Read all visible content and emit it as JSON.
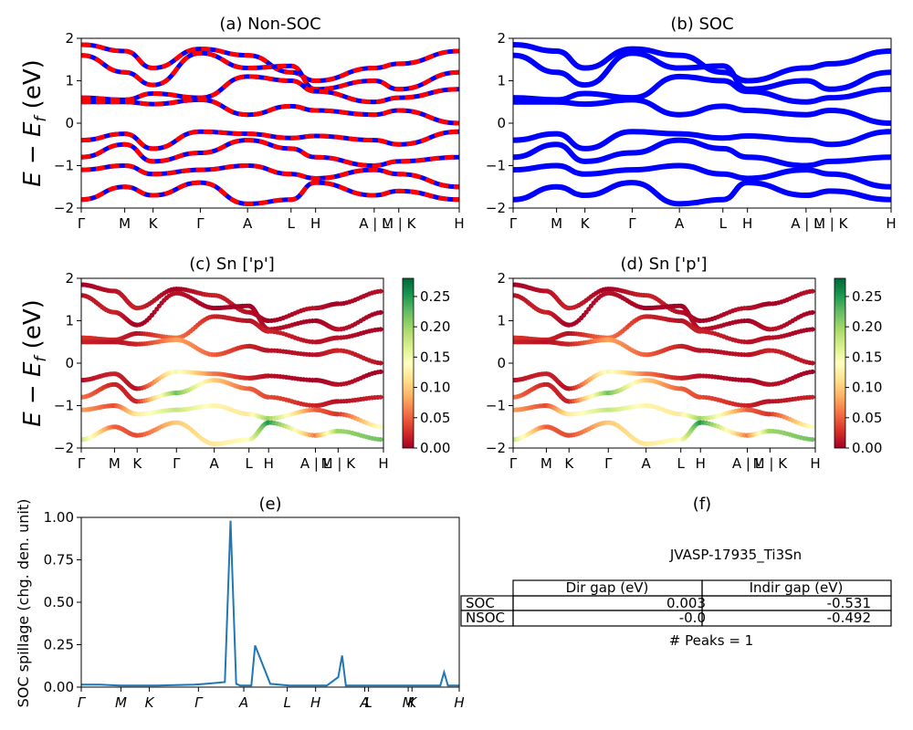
{
  "chart_data": [
    {
      "id": "a",
      "type": "line",
      "title": "(a) Non-SOC",
      "ylabel": "$E - E_f$ (eV)",
      "ylim": [
        -2,
        2
      ],
      "yticks": [
        "2",
        "1",
        "0",
        "−1",
        "−2"
      ],
      "kpath": [
        "Γ",
        "M",
        "K",
        "Γ",
        "A",
        "L",
        "H",
        "A | L",
        "M | K",
        "H"
      ],
      "series": [
        {
          "values": [
            1.85,
            1.7,
            1.3,
            1.75,
            1.6,
            1.2,
            1.0,
            1.3,
            1.4,
            1.7
          ]
        },
        {
          "values": [
            1.6,
            1.2,
            0.9,
            1.65,
            1.3,
            1.35,
            0.8,
            1.0,
            0.8,
            1.2
          ]
        },
        {
          "values": [
            0.6,
            0.55,
            0.7,
            0.6,
            1.1,
            1.0,
            0.75,
            0.5,
            0.6,
            0.8
          ]
        },
        {
          "values": [
            0.5,
            0.5,
            0.45,
            0.55,
            0.2,
            0.4,
            0.3,
            0.2,
            0.3,
            0.0
          ]
        },
        {
          "values": [
            -0.4,
            -0.25,
            -0.6,
            -0.2,
            -0.25,
            -0.35,
            -0.3,
            -0.4,
            -0.5,
            -0.2
          ]
        },
        {
          "values": [
            -0.8,
            -0.5,
            -0.9,
            -0.7,
            -0.4,
            -0.6,
            -0.8,
            -1.0,
            -0.9,
            -0.8
          ]
        },
        {
          "values": [
            -1.1,
            -1.0,
            -1.2,
            -1.1,
            -1.0,
            -1.2,
            -1.3,
            -1.1,
            -1.2,
            -1.5
          ]
        },
        {
          "values": [
            -1.8,
            -1.5,
            -1.7,
            -1.4,
            -1.9,
            -1.8,
            -1.4,
            -1.7,
            -1.6,
            -1.8
          ]
        }
      ]
    },
    {
      "id": "b",
      "type": "line",
      "title": "(b) SOC",
      "ylim": [
        -2,
        2
      ],
      "yticks": [
        "2",
        "1",
        "0",
        "−1",
        "−2"
      ],
      "kpath": [
        "Γ",
        "M",
        "K",
        "Γ",
        "A",
        "L",
        "H",
        "A | L",
        "M | K",
        "H"
      ],
      "series": [
        {
          "values": [
            1.85,
            1.7,
            1.3,
            1.75,
            1.6,
            1.2,
            1.0,
            1.3,
            1.4,
            1.7
          ]
        },
        {
          "values": [
            1.6,
            1.2,
            0.9,
            1.65,
            1.3,
            1.35,
            0.8,
            1.0,
            0.8,
            1.2
          ]
        },
        {
          "values": [
            0.6,
            0.55,
            0.7,
            0.6,
            1.1,
            1.0,
            0.75,
            0.5,
            0.6,
            0.8
          ]
        },
        {
          "values": [
            0.5,
            0.5,
            0.45,
            0.55,
            0.2,
            0.4,
            0.3,
            0.2,
            0.3,
            0.0
          ]
        },
        {
          "values": [
            -0.4,
            -0.25,
            -0.6,
            -0.2,
            -0.25,
            -0.35,
            -0.3,
            -0.4,
            -0.5,
            -0.2
          ]
        },
        {
          "values": [
            -0.8,
            -0.5,
            -0.9,
            -0.7,
            -0.4,
            -0.6,
            -0.8,
            -1.0,
            -0.9,
            -0.8
          ]
        },
        {
          "values": [
            -1.1,
            -1.0,
            -1.2,
            -1.1,
            -1.0,
            -1.2,
            -1.3,
            -1.1,
            -1.2,
            -1.5
          ]
        },
        {
          "values": [
            -1.8,
            -1.5,
            -1.7,
            -1.4,
            -1.9,
            -1.8,
            -1.4,
            -1.7,
            -1.6,
            -1.8
          ]
        }
      ]
    },
    {
      "id": "c",
      "type": "scatter",
      "title": "(c)  Sn ['p']",
      "ylabel": "$E - E_f$ (eV)",
      "ylim": [
        -2,
        2
      ],
      "yticks": [
        "2",
        "1",
        "0",
        "−1",
        "−2"
      ],
      "kpath": [
        "Γ",
        "M",
        "K",
        "Γ",
        "A",
        "L",
        "H",
        "A | L",
        "M | K",
        "H"
      ],
      "colorbar": {
        "ticks": [
          "0.25",
          "0.20",
          "0.15",
          "0.10",
          "0.05",
          "0.00"
        ],
        "range": [
          0,
          0.28
        ]
      },
      "series": [
        {
          "values": [
            1.85,
            1.7,
            1.3,
            1.75,
            1.6,
            1.2,
            1.0,
            1.3,
            1.4,
            1.7
          ],
          "weight": [
            0.0,
            0.01,
            0.02,
            0.0,
            0.02,
            0.01,
            0.0,
            0.01,
            0.0,
            0.01
          ]
        },
        {
          "values": [
            1.6,
            1.2,
            0.9,
            1.65,
            1.3,
            1.35,
            0.8,
            1.0,
            0.8,
            1.2
          ],
          "weight": [
            0.01,
            0.02,
            0.0,
            0.01,
            0.0,
            0.0,
            0.01,
            0.0,
            0.01,
            0.0
          ]
        },
        {
          "values": [
            0.6,
            0.55,
            0.7,
            0.6,
            1.1,
            1.0,
            0.75,
            0.5,
            0.6,
            0.8
          ],
          "weight": [
            0.03,
            0.02,
            0.01,
            0.06,
            0.02,
            0.01,
            0.02,
            0.01,
            0.01,
            0.0
          ]
        },
        {
          "values": [
            0.5,
            0.5,
            0.45,
            0.55,
            0.2,
            0.4,
            0.3,
            0.2,
            0.3,
            0.0
          ],
          "weight": [
            0.02,
            0.01,
            0.02,
            0.08,
            0.05,
            0.02,
            0.01,
            0.01,
            0.02,
            0.01
          ]
        },
        {
          "values": [
            -0.4,
            -0.25,
            -0.6,
            -0.2,
            -0.25,
            -0.35,
            -0.3,
            -0.4,
            -0.5,
            -0.2
          ],
          "weight": [
            0.01,
            0.02,
            0.01,
            0.15,
            0.06,
            0.02,
            0.01,
            0.0,
            0.01,
            0.0
          ]
        },
        {
          "values": [
            -0.8,
            -0.5,
            -0.9,
            -0.7,
            -0.4,
            -0.6,
            -0.8,
            -1.0,
            -0.9,
            -0.8
          ],
          "weight": [
            0.06,
            0.02,
            0.02,
            0.22,
            0.1,
            0.05,
            0.04,
            0.02,
            0.01,
            0.02
          ]
        },
        {
          "values": [
            -1.1,
            -1.0,
            -1.2,
            -1.1,
            -1.0,
            -1.2,
            -1.3,
            -1.1,
            -1.2,
            -1.5
          ],
          "weight": [
            0.08,
            0.04,
            0.12,
            0.18,
            0.13,
            0.12,
            0.2,
            0.05,
            0.03,
            0.15
          ]
        },
        {
          "values": [
            -1.8,
            -1.5,
            -1.7,
            -1.4,
            -1.9,
            -1.8,
            -1.4,
            -1.7,
            -1.6,
            -1.8
          ],
          "weight": [
            0.18,
            0.05,
            0.04,
            0.1,
            0.12,
            0.14,
            0.25,
            0.06,
            0.2,
            0.22
          ]
        }
      ]
    },
    {
      "id": "d",
      "type": "scatter",
      "title": "(d) Sn ['p']",
      "ylim": [
        -2,
        2
      ],
      "yticks": [
        "2",
        "1",
        "0",
        "−1",
        "−2"
      ],
      "kpath": [
        "Γ",
        "M",
        "K",
        "Γ",
        "A",
        "L",
        "H",
        "A | L",
        "M | K",
        "H"
      ],
      "colorbar": {
        "ticks": [
          "0.25",
          "0.20",
          "0.15",
          "0.10",
          "0.05",
          "0.00"
        ],
        "range": [
          0,
          0.28
        ]
      },
      "series": [
        {
          "values": [
            1.85,
            1.7,
            1.3,
            1.75,
            1.6,
            1.2,
            1.0,
            1.3,
            1.4,
            1.7
          ],
          "weight": [
            0.0,
            0.01,
            0.02,
            0.0,
            0.02,
            0.01,
            0.0,
            0.01,
            0.0,
            0.01
          ]
        },
        {
          "values": [
            1.6,
            1.2,
            0.9,
            1.65,
            1.3,
            1.35,
            0.8,
            1.0,
            0.8,
            1.2
          ],
          "weight": [
            0.01,
            0.02,
            0.0,
            0.01,
            0.0,
            0.0,
            0.01,
            0.0,
            0.01,
            0.0
          ]
        },
        {
          "values": [
            0.6,
            0.55,
            0.7,
            0.6,
            1.1,
            1.0,
            0.75,
            0.5,
            0.6,
            0.8
          ],
          "weight": [
            0.03,
            0.02,
            0.01,
            0.06,
            0.02,
            0.01,
            0.02,
            0.01,
            0.01,
            0.0
          ]
        },
        {
          "values": [
            0.5,
            0.5,
            0.45,
            0.55,
            0.2,
            0.4,
            0.3,
            0.2,
            0.3,
            0.0
          ],
          "weight": [
            0.02,
            0.01,
            0.02,
            0.08,
            0.05,
            0.02,
            0.01,
            0.01,
            0.02,
            0.01
          ]
        },
        {
          "values": [
            -0.4,
            -0.25,
            -0.6,
            -0.2,
            -0.25,
            -0.35,
            -0.3,
            -0.4,
            -0.5,
            -0.2
          ],
          "weight": [
            0.01,
            0.02,
            0.01,
            0.15,
            0.06,
            0.02,
            0.01,
            0.0,
            0.01,
            0.0
          ]
        },
        {
          "values": [
            -0.8,
            -0.5,
            -0.9,
            -0.7,
            -0.4,
            -0.6,
            -0.8,
            -1.0,
            -0.9,
            -0.8
          ],
          "weight": [
            0.06,
            0.02,
            0.02,
            0.22,
            0.1,
            0.05,
            0.04,
            0.02,
            0.01,
            0.02
          ]
        },
        {
          "values": [
            -1.1,
            -1.0,
            -1.2,
            -1.1,
            -1.0,
            -1.2,
            -1.3,
            -1.1,
            -1.2,
            -1.5
          ],
          "weight": [
            0.08,
            0.04,
            0.12,
            0.18,
            0.13,
            0.12,
            0.2,
            0.05,
            0.03,
            0.15
          ]
        },
        {
          "values": [
            -1.8,
            -1.5,
            -1.7,
            -1.4,
            -1.9,
            -1.8,
            -1.4,
            -1.7,
            -1.6,
            -1.8
          ],
          "weight": [
            0.18,
            0.05,
            0.04,
            0.1,
            0.12,
            0.14,
            0.25,
            0.06,
            0.2,
            0.22
          ]
        }
      ]
    },
    {
      "id": "e",
      "type": "line",
      "title": "(e)",
      "ylabel": "SOC spillage (chg. den. unit)",
      "ylim": [
        0,
        1.02
      ],
      "yticks": [
        "1.00",
        "0.75",
        "0.50",
        "0.25",
        "0.00"
      ],
      "kpath": [
        "Γ",
        "M",
        "K",
        "Γ",
        "A",
        "L",
        "H",
        "A",
        "L",
        "M",
        "K",
        "H"
      ],
      "x": [
        0,
        0.05,
        0.1,
        0.2,
        0.25,
        0.3,
        0.33,
        0.38,
        0.395,
        0.41,
        0.42,
        0.45,
        0.46,
        0.5,
        0.55,
        0.6,
        0.65,
        0.68,
        0.69,
        0.7,
        0.8,
        0.85,
        0.88,
        0.9,
        0.93,
        0.95,
        0.96,
        0.97,
        0.98,
        1.0
      ],
      "values": [
        0.015,
        0.015,
        0.01,
        0.01,
        0.012,
        0.015,
        0.02,
        0.03,
        1.0,
        0.02,
        0.01,
        0.01,
        0.25,
        0.02,
        0.01,
        0.01,
        0.01,
        0.06,
        0.19,
        0.01,
        0.01,
        0.01,
        0.01,
        0.01,
        0.01,
        0.01,
        0.09,
        0.01,
        0.01,
        0.01
      ]
    }
  ],
  "panel_f": {
    "title": "(f)",
    "material": "JVASP-17935_Ti3Sn",
    "table": {
      "headers": [
        "Dir gap (eV)",
        "Indir gap (eV)"
      ],
      "rows": [
        {
          "label": "SOC",
          "dir": "0.003",
          "indir": "-0.531"
        },
        {
          "label": "NSOC",
          "dir": "-0.0",
          "indir": "-0.492"
        }
      ]
    },
    "peaks": "# Peaks = 1"
  },
  "colors": {
    "nonsoc_a": "#ff0000",
    "nonsoc_b": "#0000ff",
    "soc": "#0000ff",
    "spillage": "#1f77b4",
    "colormap": "RdYlGn"
  }
}
